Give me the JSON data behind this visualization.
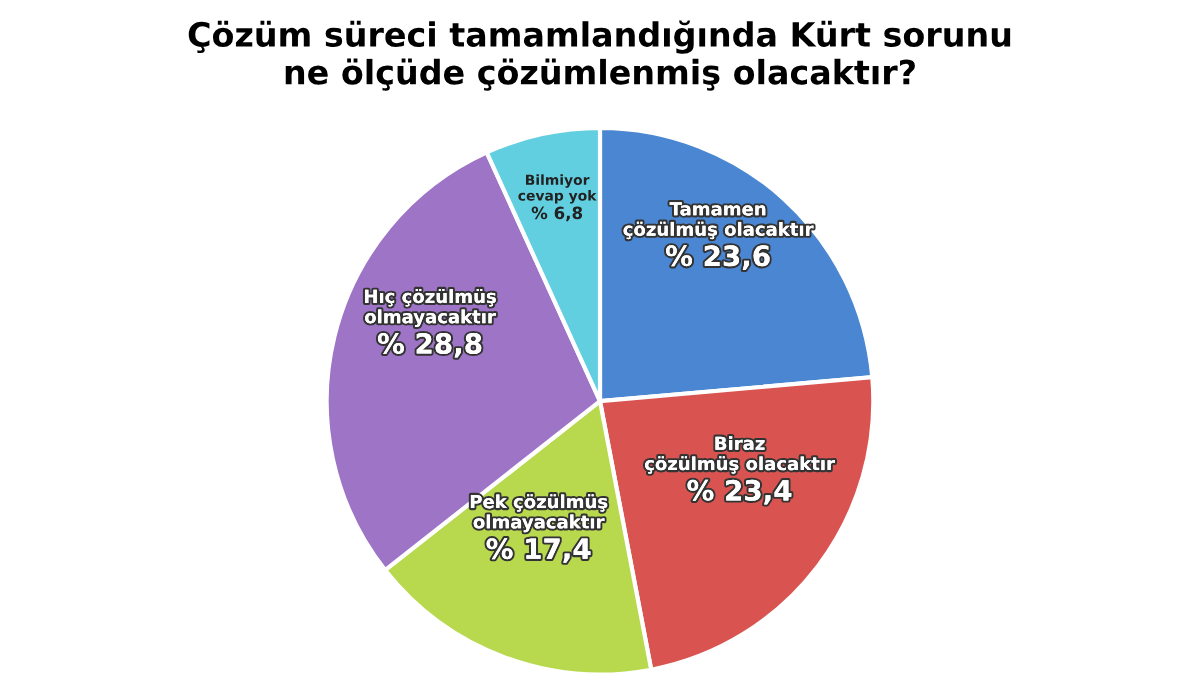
{
  "chart_data": {
    "type": "pie",
    "title": "Çözüm süreci tamamlandığında Kürt sorunu\nne ölçüde çözümlenmiş olacaktır?",
    "categories": [
      "Tamamen\nçözülmüş olacaktır",
      "Biraz\nçözülmüş olacaktır",
      "Pek çözülmüş\nolmayacaktır",
      "Hıç çözülmüş\nolmayacaktır",
      "Bilmiyor\ncevap yok"
    ],
    "values": [
      23.6,
      23.4,
      17.4,
      28.8,
      6.8
    ],
    "value_labels": [
      "% 23,6",
      "% 23,4",
      "% 17,4",
      "% 28,8",
      "% 6,8"
    ],
    "colors": [
      "#4a86d2",
      "#d95450",
      "#b8d94e",
      "#9e74c6",
      "#62cfe0"
    ]
  }
}
